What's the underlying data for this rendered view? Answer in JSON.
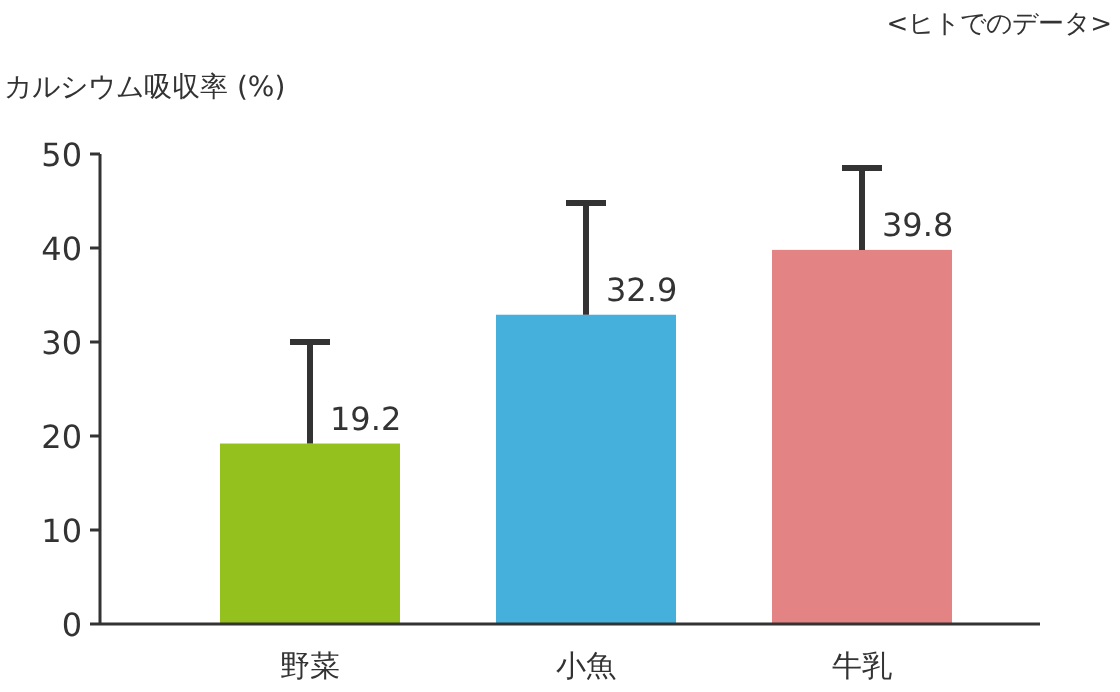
{
  "chart_data": {
    "type": "bar",
    "title": "カルシウム吸収率 (%)",
    "annotations": [
      "<ヒトでのデータ>"
    ],
    "categories": [
      "野菜",
      "小魚",
      "牛乳"
    ],
    "values": [
      19.2,
      32.9,
      39.8
    ],
    "colors": [
      "#95c11f",
      "#45b0dc",
      "#e48383"
    ],
    "errors": [
      [
        19.2,
        30.0
      ],
      [
        32.9,
        44.8
      ],
      [
        39.8,
        48.5
      ]
    ],
    "data_labels": true,
    "ylim": [
      0,
      50
    ],
    "yticks": [
      0,
      10,
      20,
      30,
      40,
      50
    ],
    "grid": false
  }
}
